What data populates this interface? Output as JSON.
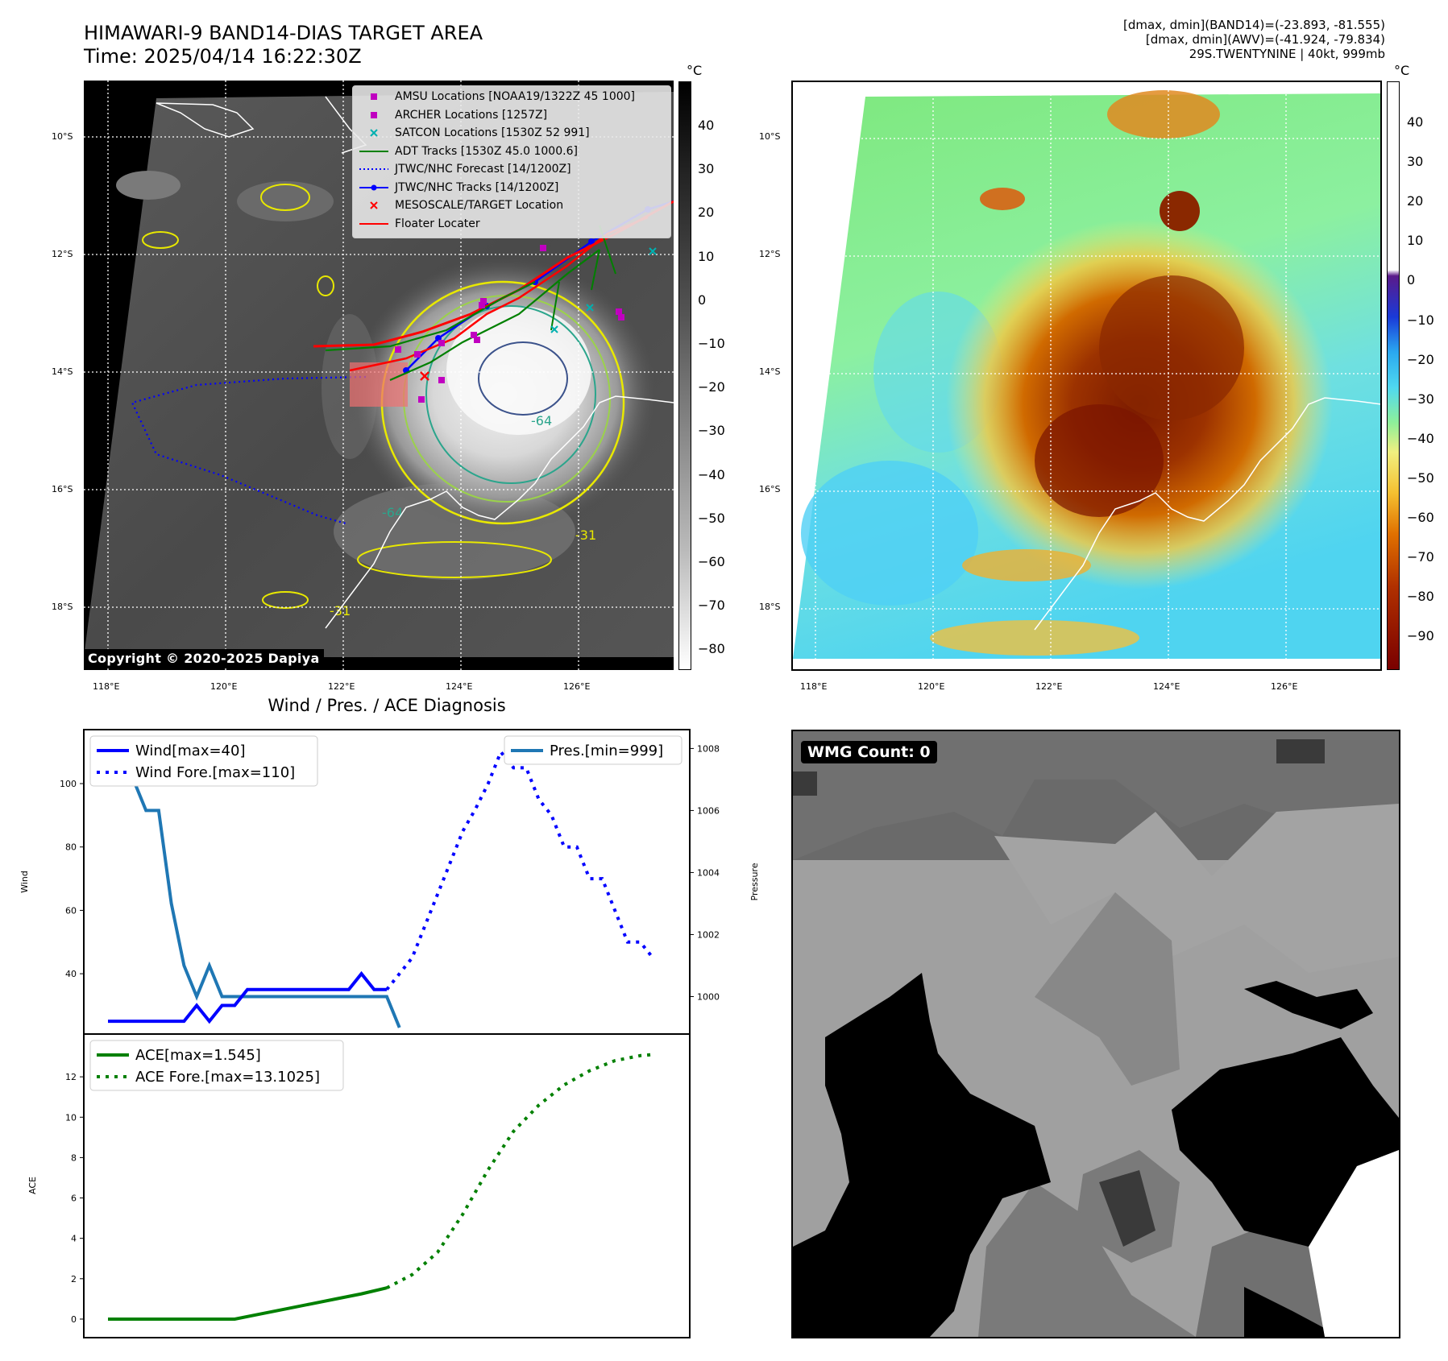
{
  "header": {
    "title_line1": "HIMAWARI-9 BAND14-DIAS TARGET AREA",
    "title_line2": "Time: 2025/04/14 16:22:30Z",
    "stats_line1": "[dmax, dmin](BAND14)=(-23.893, -81.555)",
    "stats_line2": "[dmax, dmin](AWV)=(-41.924, -79.834)",
    "stats_line3": "29S.TWENTYNINE | 40kt, 999mb"
  },
  "map": {
    "lon_ticks": [
      "118°E",
      "120°E",
      "122°E",
      "124°E",
      "126°E"
    ],
    "lat_ticks": [
      "10°S",
      "12°S",
      "14°S",
      "16°S",
      "18°S"
    ],
    "copyright": "Copyright © 2020-2025 Dapiya",
    "contour_labels": [
      "-31",
      "-64"
    ]
  },
  "colorbar_left": {
    "unit": "°C",
    "ticks": [
      "40",
      "30",
      "20",
      "10",
      "0",
      "−10",
      "−20",
      "−30",
      "−40",
      "−50",
      "−60",
      "−70",
      "−80"
    ]
  },
  "colorbar_right": {
    "unit": "°C",
    "ticks": [
      "40",
      "30",
      "20",
      "10",
      "0",
      "−10",
      "−20",
      "−30",
      "−40",
      "−50",
      "−60",
      "−70",
      "−80",
      "−90"
    ]
  },
  "map_legend": [
    {
      "label": "AMSU Locations [NOAA19/1322Z 45 1000]",
      "symbol": "square",
      "color": "#c000c0"
    },
    {
      "label": "ARCHER Locations [1257Z]",
      "symbol": "square",
      "color": "#c000c0"
    },
    {
      "label": "SATCON Locations [1530Z 52 991]",
      "symbol": "x",
      "color": "#00b0b0"
    },
    {
      "label": "ADT Tracks [1530Z 45.0 1000.6]",
      "symbol": "line",
      "color": "#008000"
    },
    {
      "label": "JTWC/NHC Forecast [14/1200Z]",
      "symbol": "dotted",
      "color": "#0000ff"
    },
    {
      "label": "JTWC/NHC Tracks [14/1200Z]",
      "symbol": "line-dot",
      "color": "#0000ff"
    },
    {
      "label": "MESOSCALE/TARGET Location",
      "symbol": "x",
      "color": "#ff0000"
    },
    {
      "label": "Floater Locater",
      "symbol": "line",
      "color": "#ff0000"
    }
  ],
  "diagnosis": {
    "title": "Wind / Pres. / ACE Diagnosis",
    "wind_legend": [
      "Wind[max=40]",
      "Wind Fore.[max=110]"
    ],
    "pres_legend": "Pres.[min=999]",
    "ace_legend": [
      "ACE[max=1.545]",
      "ACE Fore.[max=13.1025]"
    ],
    "wind_ylabel": "Wind",
    "pres_ylabel": "Pressure",
    "ace_ylabel": "ACE",
    "wind_ticks": [
      "40",
      "60",
      "80",
      "100"
    ],
    "pres_ticks": [
      "1000",
      "1002",
      "1004",
      "1006",
      "1008"
    ],
    "ace_ticks": [
      "0",
      "2",
      "4",
      "6",
      "8",
      "10",
      "12"
    ]
  },
  "wmg": {
    "label": "WMG Count: 0"
  },
  "chart_data": [
    {
      "type": "line",
      "title": "Wind / Pres. / ACE Diagnosis",
      "ylabel": "Wind",
      "ylim": [
        23,
        115
      ],
      "series": [
        {
          "name": "Wind[max=40]",
          "style": "solid",
          "color": "#0000ff",
          "x": [
            0,
            1,
            2,
            3,
            4,
            5,
            6,
            7,
            8,
            9,
            10,
            11,
            12,
            13,
            14,
            15,
            16,
            17,
            18,
            19,
            20,
            21,
            22
          ],
          "values": [
            25,
            25,
            25,
            25,
            25,
            25,
            25,
            30,
            25,
            30,
            30,
            35,
            35,
            35,
            35,
            35,
            35,
            35,
            35,
            35,
            40,
            35,
            35
          ]
        },
        {
          "name": "Wind Fore.[max=110]",
          "style": "dotted",
          "color": "#0000ff",
          "x": [
            22,
            23,
            24,
            25,
            26,
            27,
            28,
            29,
            30,
            31,
            32,
            33,
            34,
            35,
            36,
            37,
            38,
            39,
            40,
            41,
            42,
            43
          ],
          "values": [
            35,
            40,
            45,
            55,
            65,
            75,
            85,
            92,
            100,
            110,
            105,
            105,
            95,
            90,
            80,
            80,
            70,
            70,
            60,
            50,
            50,
            45
          ]
        }
      ]
    },
    {
      "type": "line",
      "ylabel": "Pressure",
      "ylim": [
        999.0,
        1008.4
      ],
      "series": [
        {
          "name": "Pres.[min=999]",
          "style": "solid",
          "color": "#1f77b4",
          "x": [
            0,
            1,
            2,
            3,
            4,
            5,
            6,
            7,
            8,
            9,
            10,
            11,
            12,
            13,
            14,
            15,
            16,
            17,
            18,
            19,
            20,
            21,
            22,
            23
          ],
          "values": [
            1008,
            1007,
            1007,
            1006,
            1006,
            1003,
            1001,
            1000,
            1001,
            1000,
            1000,
            1000,
            1000,
            1000,
            1000,
            1000,
            1000,
            1000,
            1000,
            1000,
            1000,
            1000,
            1000,
            999
          ]
        }
      ]
    },
    {
      "type": "line",
      "ylabel": "ACE",
      "ylim": [
        -0.6,
        13.8
      ],
      "series": [
        {
          "name": "ACE[max=1.545]",
          "style": "solid",
          "color": "#008000",
          "x": [
            0,
            2,
            4,
            6,
            8,
            10,
            12,
            14,
            16,
            18,
            20,
            22
          ],
          "values": [
            0,
            0,
            0,
            0,
            0,
            0,
            0.25,
            0.5,
            0.75,
            1.0,
            1.25,
            1.545
          ]
        },
        {
          "name": "ACE Fore.[max=13.1025]",
          "style": "dotted",
          "color": "#008000",
          "x": [
            22,
            24,
            26,
            28,
            30,
            32,
            34,
            36,
            38,
            40,
            42,
            43
          ],
          "values": [
            1.545,
            2.2,
            3.3,
            5.2,
            7.4,
            9.3,
            10.6,
            11.6,
            12.3,
            12.8,
            13.05,
            13.1025
          ]
        }
      ]
    }
  ]
}
